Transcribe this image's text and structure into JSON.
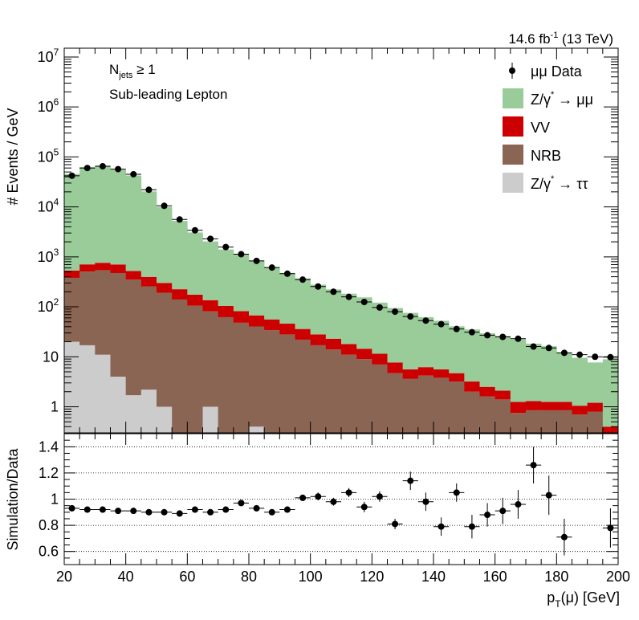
{
  "header": {
    "lumi_value": "14.6 fb",
    "lumi_exp": "-1",
    "energy": "(13 TeV)"
  },
  "annotations": {
    "njets_base": "N",
    "njets_sub": "jets",
    "njets_cond": "≥ 1",
    "lepton": "Sub-leading Lepton"
  },
  "chart_data": [
    {
      "type": "stacked_histogram",
      "ylabel": "# Events / GeV",
      "y_scale": "log",
      "ylim": [
        0.3,
        15000000
      ],
      "xlim": [
        20,
        200
      ],
      "y_ticks": [
        {
          "value": 1,
          "label": "1"
        },
        {
          "value": 10,
          "label": "10"
        },
        {
          "value": 100,
          "label": "10",
          "exp": "2"
        },
        {
          "value": 1000,
          "label": "10",
          "exp": "3"
        },
        {
          "value": 10000,
          "label": "10",
          "exp": "4"
        },
        {
          "value": 100000,
          "label": "10",
          "exp": "5"
        },
        {
          "value": 1000000,
          "label": "10",
          "exp": "6"
        },
        {
          "value": 10000000,
          "label": "10",
          "exp": "7"
        }
      ],
      "bin_edges_start": 20,
      "bin_width": 5,
      "stack_order": [
        "Z/γ* → ττ",
        "NRB",
        "VV",
        "Z/γ* → μμ"
      ],
      "colors": {
        "ztt": "#cccccc",
        "nrb": "#8b6553",
        "vv": "#cc0000",
        "zmm": "#99cc99",
        "data": "#000000"
      },
      "series": [
        {
          "key": "ztt",
          "name": "Z/γ* → ττ",
          "values": [
            20,
            17,
            11,
            4,
            1.7,
            2.2,
            1.0,
            0,
            0,
            1.0,
            0,
            0,
            0.4,
            0,
            0,
            0,
            0,
            0,
            0,
            0,
            0,
            0,
            0,
            0,
            0,
            0,
            0,
            0,
            0,
            0,
            0,
            0,
            0,
            0,
            0,
            0
          ]
        },
        {
          "key": "nrb",
          "name": "NRB",
          "values": [
            360,
            490,
            530,
            470,
            350,
            255,
            190,
            140,
            105,
            80,
            62,
            48,
            40,
            34,
            28,
            22,
            17,
            14,
            11,
            9,
            7,
            4.7,
            3.6,
            4.2,
            3.8,
            3.2,
            2.0,
            1.6,
            1.4,
            0.75,
            0.85,
            0.85,
            0.85,
            0.7,
            0.8,
            0.2
          ]
        },
        {
          "key": "vv",
          "name": "VV",
          "values": [
            150,
            200,
            220,
            230,
            170,
            140,
            110,
            85,
            70,
            55,
            42,
            34,
            27,
            22,
            18,
            14,
            11,
            9,
            7,
            5.5,
            4.5,
            3.0,
            2.0,
            2.0,
            1.8,
            1.5,
            1.2,
            0.9,
            0.7,
            0.5,
            0.45,
            0.4,
            0.4,
            0.35,
            0.4,
            0.2
          ]
        },
        {
          "key": "zmm",
          "name": "Z/γ* → μμ",
          "values": [
            45000,
            62000,
            66000,
            55000,
            42000,
            20000,
            9600,
            5000,
            2900,
            1900,
            1300,
            1040,
            780,
            570,
            430,
            335,
            250,
            200,
            165,
            140,
            110,
            87,
            70,
            56,
            47,
            36,
            32,
            27,
            24,
            21,
            17,
            15,
            11,
            8.5,
            6.5,
            8.5
          ]
        },
        {
          "key": "data",
          "name": "μμ Data",
          "values": [
            42000,
            60000,
            65000,
            57000,
            45000,
            22000,
            10500,
            5600,
            3400,
            2300,
            1570,
            1130,
            830,
            610,
            460,
            350,
            255,
            200,
            158,
            125,
            97,
            80,
            64,
            53,
            45,
            36,
            31,
            27,
            25,
            23,
            16,
            15,
            12,
            11,
            10,
            9.8
          ]
        }
      ],
      "legend": [
        {
          "label": "μμ Data",
          "key": "data",
          "marker": "point"
        },
        {
          "label": "Z/γ",
          "sup": "*",
          "tail": " → μμ",
          "key": "zmm",
          "marker": "box"
        },
        {
          "label": "VV",
          "sup": "",
          "tail": "",
          "key": "vv",
          "marker": "box"
        },
        {
          "label": "NRB",
          "sup": "",
          "tail": "",
          "key": "nrb",
          "marker": "box"
        },
        {
          "label": "Z/γ",
          "sup": "*",
          "tail": " → ττ",
          "key": "ztt",
          "marker": "box"
        }
      ]
    },
    {
      "type": "scatter",
      "ylabel": "Simulation/Data",
      "xlabel": "p",
      "xlabel_sub": "T",
      "xlabel_tail": "(μ) [GeV]",
      "xlim": [
        20,
        200
      ],
      "ylim": [
        0.5,
        1.5
      ],
      "x_ticks": [
        20,
        40,
        60,
        80,
        100,
        120,
        140,
        160,
        180,
        200
      ],
      "y_ticks": [
        0.6,
        0.8,
        1,
        1.2,
        1.4
      ],
      "y_tick_labels": [
        "0.6",
        "0.8",
        "1",
        "1.2",
        "1.4"
      ],
      "gridlines": [
        0.6,
        0.8,
        1.0,
        1.2,
        1.4
      ],
      "x": [
        22.5,
        27.5,
        32.5,
        37.5,
        42.5,
        47.5,
        52.5,
        57.5,
        62.5,
        67.5,
        72.5,
        77.5,
        82.5,
        87.5,
        92.5,
        97.5,
        102.5,
        107.5,
        112.5,
        117.5,
        122.5,
        127.5,
        132.5,
        137.5,
        142.5,
        147.5,
        152.5,
        157.5,
        162.5,
        167.5,
        172.5,
        177.5,
        182.5,
        197.5
      ],
      "values": [
        0.93,
        0.92,
        0.92,
        0.91,
        0.91,
        0.9,
        0.9,
        0.89,
        0.92,
        0.9,
        0.92,
        0.97,
        0.93,
        0.9,
        0.92,
        1.01,
        1.02,
        0.98,
        1.05,
        0.94,
        1.02,
        0.81,
        1.14,
        0.98,
        0.79,
        1.05,
        0.79,
        0.88,
        0.91,
        0.96,
        1.26,
        1.03,
        0.71,
        0.78
      ],
      "errors": [
        0.01,
        0.01,
        0.01,
        0.01,
        0.01,
        0.01,
        0.01,
        0.01,
        0.01,
        0.01,
        0.012,
        0.015,
        0.015,
        0.02,
        0.02,
        0.025,
        0.03,
        0.03,
        0.035,
        0.04,
        0.04,
        0.04,
        0.07,
        0.07,
        0.07,
        0.07,
        0.09,
        0.09,
        0.1,
        0.11,
        0.14,
        0.15,
        0.14,
        0.15
      ]
    }
  ]
}
